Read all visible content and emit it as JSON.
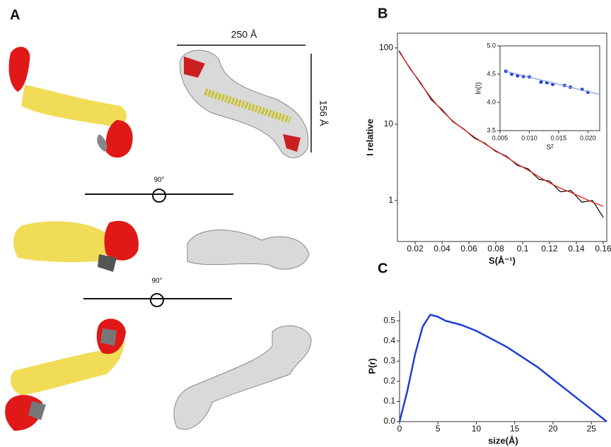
{
  "figure": {
    "panel_labels": [
      "A",
      "B",
      "C"
    ],
    "annotations": [
      "250 Å",
      "156 Å",
      "90°",
      "90°"
    ]
  },
  "chart_data": [
    {
      "type": "line",
      "yscale": "log",
      "xlabel": "S(Å⁻¹)",
      "ylabel": "I relative",
      "x": [
        0.008,
        0.016,
        0.024,
        0.032,
        0.04,
        0.048,
        0.056,
        0.064,
        0.072,
        0.08,
        0.088,
        0.096,
        0.104,
        0.112,
        0.12,
        0.128,
        0.136,
        0.144,
        0.152,
        0.16
      ],
      "series": [
        {
          "color": "#111111",
          "values": [
            92,
            54,
            35,
            21,
            15.5,
            10.8,
            8.7,
            6.6,
            5.6,
            4.4,
            3.8,
            2.9,
            2.6,
            1.9,
            1.8,
            1.3,
            1.35,
            0.95,
            1.0,
            0.6
          ]
        },
        {
          "color": "#e0201b",
          "values": [
            89,
            55,
            34,
            22,
            15,
            11,
            8.6,
            6.8,
            5.5,
            4.5,
            3.7,
            3.0,
            2.5,
            2.05,
            1.7,
            1.45,
            1.27,
            1.1,
            0.95,
            0.84
          ]
        }
      ],
      "xlim": [
        0.0068,
        0.1626
      ],
      "xticks": [
        0.02,
        0.04,
        0.06,
        0.08,
        0.1,
        0.12,
        0.14,
        0.16
      ],
      "ylim": [
        0.29,
        156
      ],
      "yticks": [
        1,
        10,
        100
      ]
    },
    {
      "type": "scatter",
      "xlabel": "S²",
      "ylabel": "ln(I)",
      "series": [
        {
          "mode": "markers",
          "color": "#1f3fd6",
          "x": [
            0.006,
            0.007,
            0.008,
            0.009,
            0.01,
            0.012,
            0.013,
            0.014,
            0.016,
            0.017,
            0.019,
            0.02
          ],
          "values": [
            4.55,
            4.5,
            4.47,
            4.46,
            4.45,
            4.36,
            4.35,
            4.32,
            4.3,
            4.27,
            4.23,
            4.18
          ]
        },
        {
          "mode": "line",
          "color": "#8aa0e8",
          "x": [
            0.006,
            0.022
          ],
          "values": [
            4.55,
            4.14
          ]
        }
      ],
      "xlim": [
        0.005,
        0.022
      ],
      "xticks": [
        {
          "value": 0.005,
          "label": "0.005"
        },
        {
          "value": 0.01,
          "label": "0.010"
        },
        {
          "value": 0.015,
          "label": "0.015"
        },
        {
          "value": 0.02,
          "label": "0.020"
        }
      ],
      "ylim": [
        3.5,
        5.0
      ],
      "yticks": [
        3.5,
        {
          "value": 4,
          "label": "4.0"
        },
        4.5,
        {
          "value": 5,
          "label": "5.0"
        }
      ]
    },
    {
      "type": "line",
      "xlabel": "size(Å)",
      "ylabel": "P(r)",
      "x": [
        0,
        1,
        2,
        3,
        4,
        5,
        6,
        8,
        10,
        12,
        14,
        16,
        18,
        20,
        22,
        24,
        26,
        27
      ],
      "series": [
        {
          "color": "#1d3fd8",
          "values": [
            0,
            0.15,
            0.33,
            0.47,
            0.53,
            0.52,
            0.5,
            0.48,
            0.45,
            0.41,
            0.37,
            0.32,
            0.27,
            0.21,
            0.15,
            0.09,
            0.03,
            0
          ]
        }
      ],
      "xlim": [
        0,
        27
      ],
      "xticks": [
        0,
        5,
        10,
        15,
        20,
        25
      ],
      "ylim": [
        0,
        0.55
      ],
      "yticks": [
        {
          "value": 0,
          "label": "0.0"
        },
        0.1,
        0.2,
        0.3,
        0.4,
        0.5
      ]
    }
  ]
}
